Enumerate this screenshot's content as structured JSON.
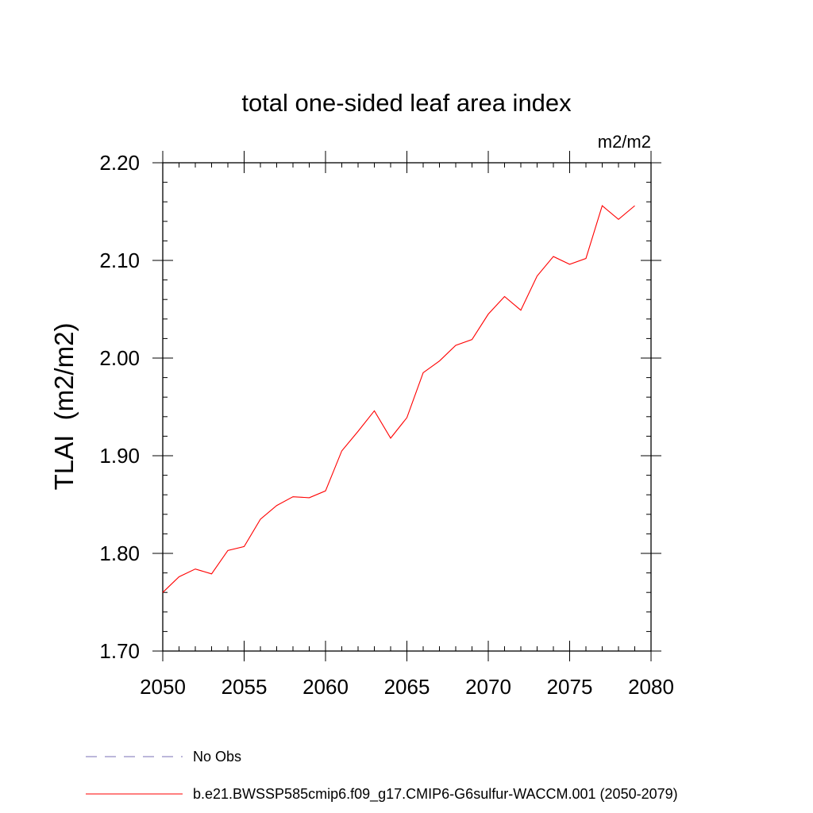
{
  "chart_data": {
    "type": "line",
    "title": "total one-sided leaf area index",
    "units_label": "m2/m2",
    "ylabel": "TLAI  (m2/m2)",
    "xlabel": "",
    "xlim": [
      2050,
      2080
    ],
    "ylim": [
      1.7,
      2.2
    ],
    "x_ticks": [
      2050,
      2055,
      2060,
      2065,
      2070,
      2075,
      2080
    ],
    "y_ticks": [
      "1.70",
      "1.80",
      "1.90",
      "2.00",
      "2.10",
      "2.20"
    ],
    "x_minor_step": 1,
    "y_minor_step": 0.02,
    "grid": false,
    "legend_position": "bottom",
    "series": [
      {
        "name": "b.e21.BWSSP585cmip6.f09_g17.CMIP6-G6sulfur-WACCM.001 (2050-2079)",
        "color": "#ff0000",
        "style": "solid",
        "x": [
          2050,
          2051,
          2052,
          2053,
          2054,
          2055,
          2056,
          2057,
          2058,
          2059,
          2060,
          2061,
          2062,
          2063,
          2064,
          2065,
          2066,
          2067,
          2068,
          2069,
          2070,
          2071,
          2072,
          2073,
          2074,
          2075,
          2076,
          2077,
          2078,
          2079
        ],
        "values": [
          1.76,
          1.776,
          1.784,
          1.779,
          1.803,
          1.807,
          1.835,
          1.849,
          1.858,
          1.857,
          1.864,
          1.905,
          1.925,
          1.946,
          1.918,
          1.939,
          1.985,
          1.997,
          2.013,
          2.019,
          2.045,
          2.063,
          2.049,
          2.084,
          2.104,
          2.096,
          2.102,
          2.156,
          2.142,
          2.156
        ]
      }
    ],
    "legend": [
      {
        "label": "No Obs",
        "color": "#7a6fb5",
        "style": "dashed"
      },
      {
        "label": "b.e21.BWSSP585cmip6.f09_g17.CMIP6-G6sulfur-WACCM.001 (2050-2079)",
        "color": "#ff0000",
        "style": "solid"
      }
    ]
  }
}
